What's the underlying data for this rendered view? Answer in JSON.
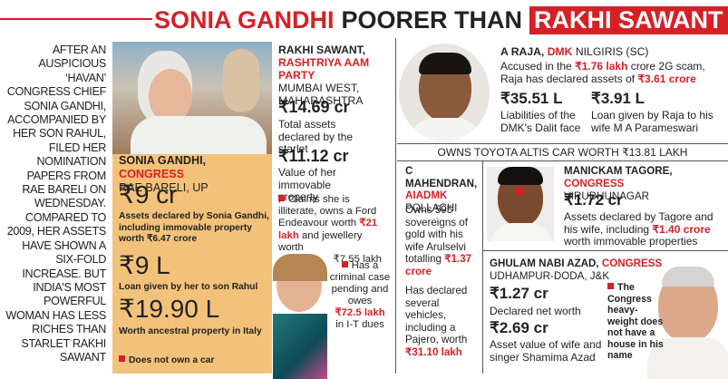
{
  "headline": {
    "part1": "SONIA GANDHI",
    "part2": "POORER THAN",
    "part3": "RAKHI SAWANT"
  },
  "intro": "AFTER AN AUSPICIOUS ‘HAVAN’ CONGRESS CHIEF SONIA GANDHI, ACCOMPANIED BY HER SON RAHUL, FILED HER NOMINATION PAPERS FROM RAE BARELI ON WEDNESDAY. COMPARED TO 2009, HER ASSETS HAVE SHOWN A SIX-FOLD INCREASE. BUT INDIA'S MOST POWERFUL WOMAN HAS LESS RICHES THAN STARLET RAKHI SAWANT",
  "sonia": {
    "name": "SONIA GANDHI,",
    "party": "CONGRESS",
    "constituency": "RAE BARELI, UP",
    "amount1": "₹9 cr",
    "desc1": "Assets declared by Sonia Gandhi, including immovable property worth ₹6.47 crore",
    "amount2": "₹9 L",
    "desc2": "Loan given by her to son Rahul",
    "amount3": "₹19.90 L",
    "desc3": "Worth ancestral property in Italy",
    "note": "Does not own a car"
  },
  "rakhi": {
    "name": "RAKHI SAWANT,",
    "party": "RASHTRIYA AAM PARTY",
    "constituency": "MUMBAI WEST, MAHARASHTRA",
    "amount1": "₹14.69 cr",
    "desc1": "Total assets declared by the starlet",
    "amount2": "₹11.12 cr",
    "desc2": "Value of her immovable property",
    "claims_a": "Claims she is illiterate, owns a Ford Endeavour worth ",
    "claims_red1": "₹21 lakh",
    "claims_b": " and jewellery worth",
    "claims_c": "₹7.55 lakh",
    "case_a": "Has a criminal case pending and owes",
    "case_red": "₹72.5 lakh",
    "case_b": "in I-T dues"
  },
  "raja": {
    "name": "A RAJA,",
    "party": "DMK",
    "constituency": "NILGIRIS (SC)",
    "intro_a": "Accused in the ",
    "intro_red1": "₹1.76 lakh",
    "intro_b": " crore 2G scam, Raja has declared assets of ",
    "intro_red2": "₹3.61 crore",
    "amount1": "₹35.51 L",
    "desc1": "Liabilities of the DMK's Dalit face",
    "amount2": "₹3.91 L",
    "desc2": "Loan given by Raja to his wife M A Parameswari",
    "banner": "OWNS TOYOTA ALTIS CAR WORTH ₹13.81 LAKH"
  },
  "mahendran": {
    "name": "C MAHENDRAN,",
    "party": "AIADMK",
    "constituency": "POLLACHI",
    "text_a": "Owns 595 sovereigns of gold with his wife Arulselvi totalling ",
    "text_red1": "₹1.37 crore",
    "text_b": "Has declared several vehicles, including a Pajero, worth ",
    "text_red2": "₹31.10 lakh"
  },
  "tagore": {
    "name": "MANICKAM TAGORE,",
    "party": "CONGRESS",
    "constituency": "VIRUDHUNAGAR",
    "amount": "₹1.72 cr",
    "desc_a": "Assets declared by Tagore and his wife, including ",
    "desc_red": "₹1.40 crore",
    "desc_b": " worth immovable properties"
  },
  "azad": {
    "name": "GHULAM NABI AZAD,",
    "party": "CONGRESS",
    "constituency": "UDHAMPUR-DODA, J&K",
    "amount1": "₹1.27 cr",
    "desc1": "Declared net worth",
    "amount2": "₹2.69 cr",
    "desc2": "Asset value of wife and singer Shamima Azad",
    "note": "The Congress heavy-weight does not have a house in his name"
  }
}
